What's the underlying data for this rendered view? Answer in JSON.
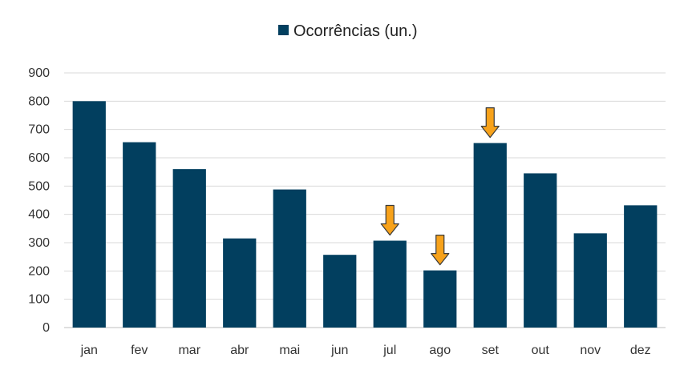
{
  "chart_data": {
    "type": "bar",
    "legend": {
      "label": "Ocorrências (un.)",
      "position": "top-center",
      "color": "#023f5f"
    },
    "categories": [
      "jan",
      "fev",
      "mar",
      "abr",
      "mai",
      "jun",
      "jul",
      "ago",
      "set",
      "out",
      "nov",
      "dez"
    ],
    "series": [
      {
        "name": "Ocorrências (un.)",
        "color": "#023f5f",
        "values": [
          800,
          655,
          560,
          315,
          488,
          257,
          307,
          202,
          652,
          545,
          333,
          432
        ]
      }
    ],
    "ylim": [
      0,
      900
    ],
    "yticks": [
      0,
      100,
      200,
      300,
      400,
      500,
      600,
      700,
      800,
      900
    ],
    "grid": true,
    "gridColor": "#d9d9d9",
    "annotations": [
      {
        "type": "arrow-down",
        "category": "jul",
        "color": "#f7a21b"
      },
      {
        "type": "arrow-down",
        "category": "ago",
        "color": "#f7a21b"
      },
      {
        "type": "arrow-down",
        "category": "set",
        "color": "#f7a21b"
      }
    ]
  }
}
